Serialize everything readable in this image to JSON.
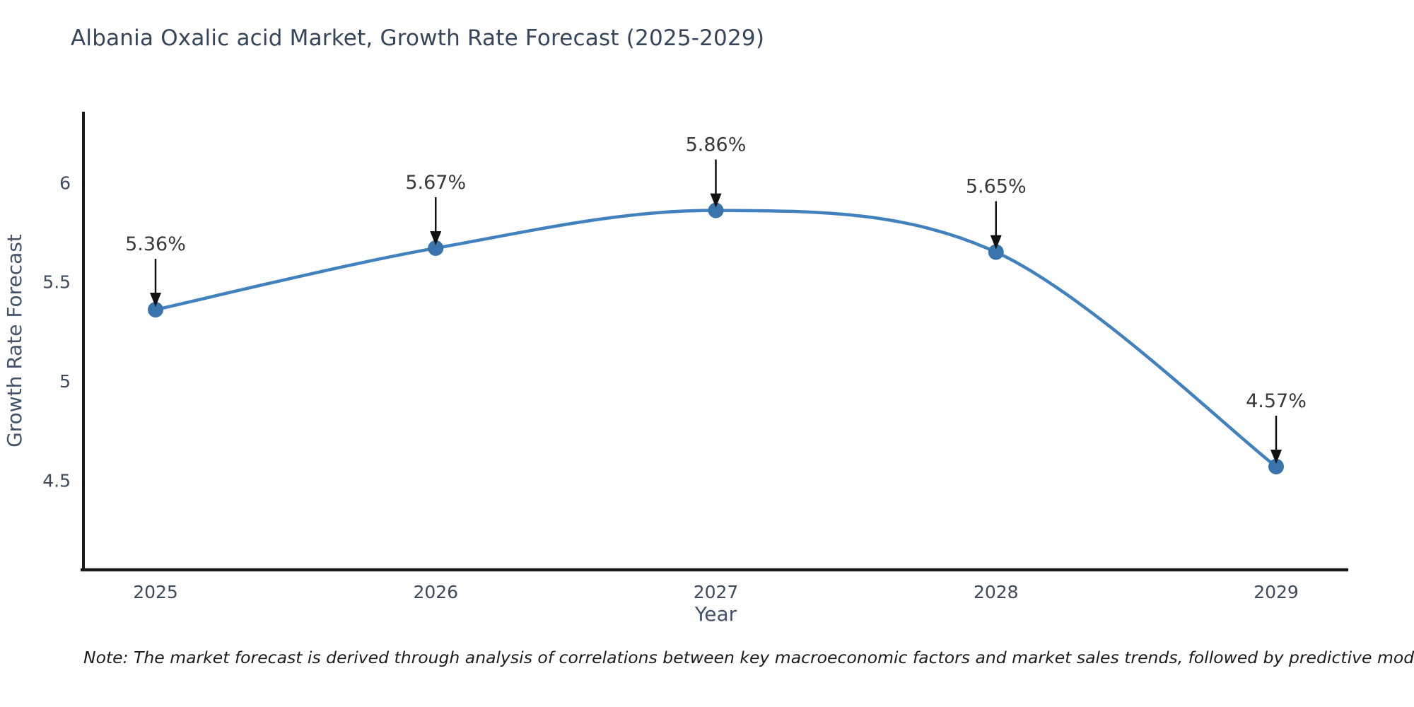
{
  "title": {
    "text": "Albania Oxalic acid Market, Growth Rate Forecast (2025-2029)",
    "color": "#36455a"
  },
  "note": {
    "text": "Note: The market forecast is derived through analysis of correlations between key macroeconomic factors and market sales trends, followed by predictive modeling to project future sales"
  },
  "chart_data": {
    "type": "line",
    "title": "Albania Oxalic acid Market, Growth Rate Forecast (2025-2029)",
    "x": [
      2025,
      2026,
      2027,
      2028,
      2029
    ],
    "series": [
      {
        "name": "Growth Rate Forecast",
        "values": [
          5.36,
          5.67,
          5.86,
          5.65,
          4.57
        ]
      }
    ],
    "point_labels": [
      "5.36%",
      "5.67%",
      "5.86%",
      "5.65%",
      "4.57%"
    ],
    "xtick_labels": [
      "2025",
      "2026",
      "2027",
      "2028",
      "2029"
    ],
    "yticks": [
      4.5,
      5,
      5.5,
      6
    ],
    "ytick_labels": [
      "4.5",
      "5",
      "5.5",
      "6"
    ],
    "xlabel": "Year",
    "ylabel": "Growth Rate Forecast",
    "ylim": [
      4.05,
      6.357
    ],
    "grid": false,
    "legend": "none",
    "colors": {
      "line": "#4181bd",
      "marker": "#3a74ad",
      "axis": "#1a1a1a",
      "tick_label": "#3d4a5c",
      "axis_label": "#42526b",
      "annotation_text": "#383838",
      "arrow": "#111111"
    }
  }
}
